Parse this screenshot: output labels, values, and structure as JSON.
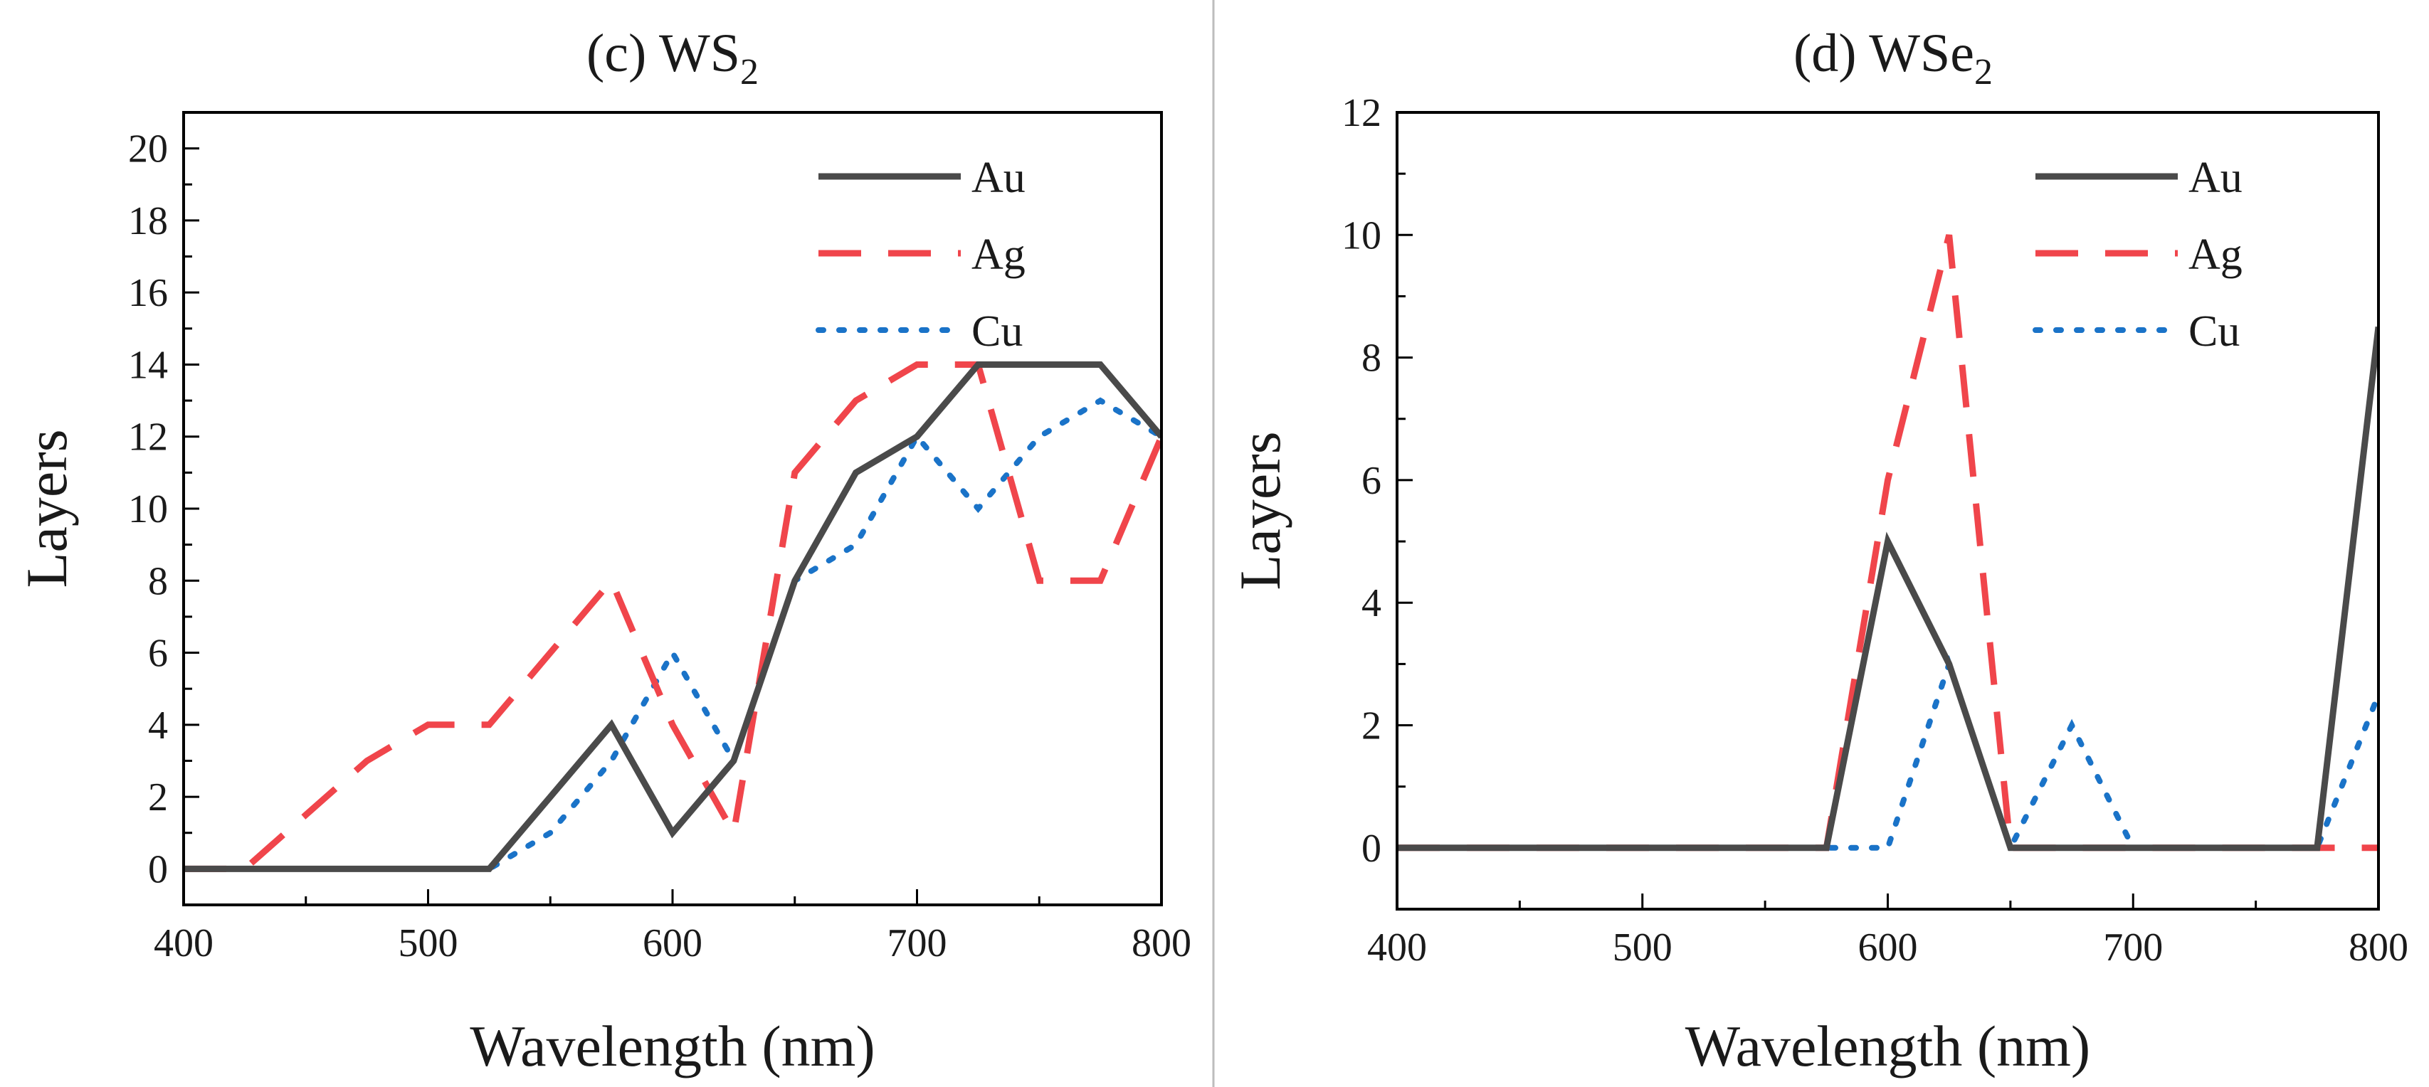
{
  "chart_data": [
    {
      "type": "line",
      "title": "(c) WS",
      "title_sub": "2",
      "xlabel": "Wavelength (nm)",
      "ylabel": "Layers",
      "xlim": [
        400,
        800
      ],
      "ylim": [
        -1,
        21
      ],
      "xticks": [
        400,
        500,
        600,
        700,
        800
      ],
      "yticks": [
        0,
        2,
        4,
        6,
        8,
        10,
        12,
        14,
        16,
        18,
        20
      ],
      "x": [
        400,
        425,
        450,
        475,
        500,
        525,
        550,
        575,
        600,
        625,
        650,
        675,
        700,
        725,
        750,
        775,
        800
      ],
      "series": [
        {
          "name": "Au",
          "color": "#4a4a4a",
          "dash": "solid",
          "values": [
            0,
            0,
            0,
            0,
            0,
            0,
            2,
            4,
            1,
            3,
            8,
            11,
            12,
            14,
            14,
            14,
            12
          ]
        },
        {
          "name": "Ag",
          "color": "#f0454b",
          "dash": "dashed",
          "values": [
            0,
            0,
            1.5,
            3,
            4,
            4,
            6,
            8,
            4,
            1,
            11,
            13,
            14,
            14,
            8,
            8,
            12
          ]
        },
        {
          "name": "Cu",
          "color": "#1a73c8",
          "dash": "dotted",
          "values": [
            0,
            0,
            0,
            0,
            0,
            0,
            1,
            3,
            6,
            3,
            8,
            9,
            12,
            10,
            12,
            13,
            12
          ]
        }
      ],
      "legend": "top-right"
    },
    {
      "type": "line",
      "title": "(d) WSe",
      "title_sub": "2",
      "xlabel": "Wavelength (nm)",
      "ylabel": "Layers",
      "xlim": [
        400,
        800
      ],
      "ylim": [
        -1,
        12
      ],
      "xticks": [
        400,
        500,
        600,
        700,
        800
      ],
      "yticks": [
        0,
        2,
        4,
        6,
        8,
        10,
        12
      ],
      "x": [
        400,
        425,
        450,
        475,
        500,
        525,
        550,
        575,
        600,
        625,
        650,
        675,
        700,
        725,
        750,
        775,
        800
      ],
      "series": [
        {
          "name": "Au",
          "color": "#4a4a4a",
          "dash": "solid",
          "values": [
            0,
            0,
            0,
            0,
            0,
            0,
            0,
            0,
            5,
            3,
            0,
            0,
            0,
            0,
            0,
            0,
            8.5
          ]
        },
        {
          "name": "Ag",
          "color": "#f0454b",
          "dash": "dashed",
          "values": [
            0,
            0,
            0,
            0,
            0,
            0,
            0,
            0,
            6,
            10,
            0,
            0,
            0,
            0,
            0,
            0,
            0
          ]
        },
        {
          "name": "Cu",
          "color": "#1a73c8",
          "dash": "dotted",
          "values": [
            0,
            0,
            0,
            0,
            0,
            0,
            0,
            0,
            0,
            3,
            0,
            2,
            0,
            0,
            0,
            0,
            2.5
          ]
        }
      ],
      "legend": "top-right"
    }
  ]
}
